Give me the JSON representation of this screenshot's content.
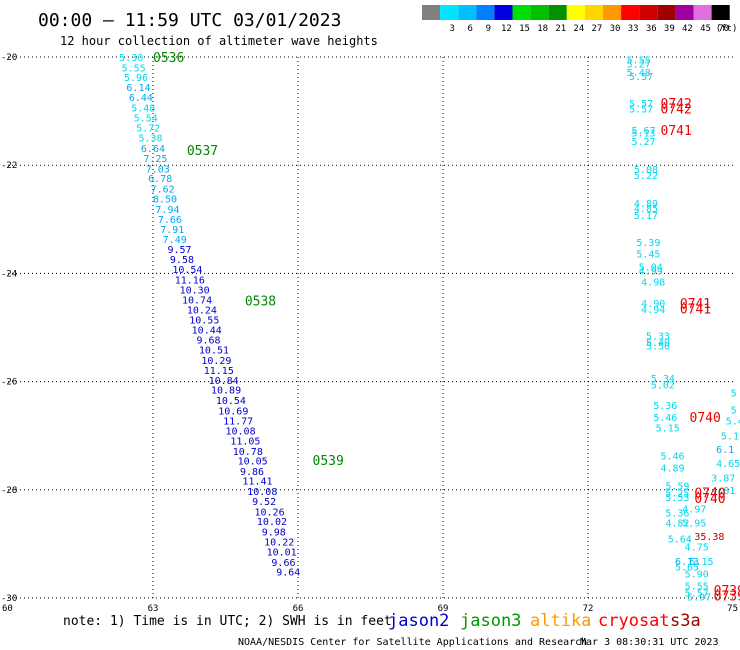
{
  "header": {
    "title": "00:00 — 11:59 UTC 03/01/2023",
    "subtitle": "12 hour collection of altimeter wave heights"
  },
  "legend": {
    "unit": "(ft)",
    "swatches": [
      {
        "label": "",
        "color": "#808080"
      },
      {
        "label": "3",
        "color": "#00e5ff"
      },
      {
        "label": "6",
        "color": "#00bfff"
      },
      {
        "label": "9",
        "color": "#0080ff"
      },
      {
        "label": "12",
        "color": "#0000e0"
      },
      {
        "label": "15",
        "color": "#00e000"
      },
      {
        "label": "18",
        "color": "#00c000"
      },
      {
        "label": "21",
        "color": "#009000"
      },
      {
        "label": "24",
        "color": "#ffff00"
      },
      {
        "label": "27",
        "color": "#ffd700"
      },
      {
        "label": "30",
        "color": "#ff9900"
      },
      {
        "label": "33",
        "color": "#ff0000"
      },
      {
        "label": "36",
        "color": "#d00000"
      },
      {
        "label": "39",
        "color": "#a00000"
      },
      {
        "label": "42",
        "color": "#a000a0"
      },
      {
        "label": "45",
        "color": "#e070e0"
      },
      {
        "label": "70",
        "color": "#000000"
      }
    ]
  },
  "footer": {
    "note": "note: 1) Time is in UTC; 2) SWH is in feet",
    "satellites": [
      {
        "name": "jason2",
        "color": "#0000cc"
      },
      {
        "name": "jason3",
        "color": "#009900"
      },
      {
        "name": "altika",
        "color": "#ff9900"
      },
      {
        "name": "cryosat",
        "color": "#ff0000"
      },
      {
        "name": "s3a",
        "color": "#990000"
      }
    ],
    "credit": "NOAA/NESDIS Center for Satellite Applications and Research",
    "timestamp": "Mar  3 08:30:31 UTC 2023"
  },
  "chart_data": {
    "type": "scatter",
    "xlim": [
      60,
      75
    ],
    "ylim": [
      -30,
      -20
    ],
    "x_ticks": [
      {
        "v": 60,
        "label": "60"
      },
      {
        "v": 63,
        "label": "63"
      },
      {
        "v": 66,
        "label": "66"
      },
      {
        "v": 69,
        "label": "69"
      },
      {
        "v": 72,
        "label": "72"
      },
      {
        "v": 75,
        "label": "75"
      }
    ],
    "y_ticks": [
      {
        "v": -20,
        "label": "-20"
      },
      {
        "v": -22,
        "label": "-22"
      },
      {
        "v": -24,
        "label": "-24"
      },
      {
        "v": -26,
        "label": "-26"
      },
      {
        "v": -28,
        "label": "-28"
      },
      {
        "v": -30,
        "label": "-30"
      }
    ],
    "grid": true,
    "times": [
      {
        "label": "0536",
        "x": 63.0,
        "y": -20.0,
        "color": "#008800"
      },
      {
        "label": "0537",
        "x": 63.7,
        "y": -21.72,
        "color": "#008800"
      },
      {
        "label": "0538",
        "x": 64.9,
        "y": -24.5,
        "color": "#008800"
      },
      {
        "label": "0539",
        "x": 66.3,
        "y": -27.45,
        "color": "#008800"
      },
      {
        "label": "0742",
        "x": 73.5,
        "y": -20.85,
        "color": "#ee0000"
      },
      {
        "label": "0742",
        "x": 73.5,
        "y": -20.95,
        "color": "#ee0000"
      },
      {
        "label": "0741",
        "x": 73.5,
        "y": -21.35,
        "color": "#ee0000"
      },
      {
        "label": "0741",
        "x": 73.9,
        "y": -24.55,
        "color": "#ee0000"
      },
      {
        "label": "0741",
        "x": 73.9,
        "y": -24.65,
        "color": "#ee0000"
      },
      {
        "label": "0740",
        "x": 74.1,
        "y": -26.65,
        "color": "#ee0000"
      },
      {
        "label": "0740",
        "x": 74.2,
        "y": -28.05,
        "color": "#ee0000"
      },
      {
        "label": "0740",
        "x": 74.2,
        "y": -28.15,
        "color": "#ee0000"
      },
      {
        "label": "0739",
        "x": 74.6,
        "y": -29.85,
        "color": "#ee0000"
      },
      {
        "label": "0739",
        "x": 74.6,
        "y": -29.95,
        "color": "#ee0000"
      }
    ],
    "points": [
      {
        "v": "5.30",
        "x": 62.3,
        "y": -20.0
      },
      {
        "v": "5.55",
        "x": 62.35,
        "y": -20.19
      },
      {
        "v": "5.96",
        "x": 62.4,
        "y": -20.37
      },
      {
        "v": "6.14",
        "x": 62.45,
        "y": -20.55
      },
      {
        "v": "6.44",
        "x": 62.5,
        "y": -20.74
      },
      {
        "v": "5.48",
        "x": 62.55,
        "y": -20.93
      },
      {
        "v": "5.54",
        "x": 62.6,
        "y": -21.12
      },
      {
        "v": "5.72",
        "x": 62.65,
        "y": -21.3
      },
      {
        "v": "5.38",
        "x": 62.7,
        "y": -21.49
      },
      {
        "v": "6.64",
        "x": 62.75,
        "y": -21.68
      },
      {
        "v": "7.25",
        "x": 62.8,
        "y": -21.87
      },
      {
        "v": "7.03",
        "x": 62.85,
        "y": -22.06
      },
      {
        "v": "6.78",
        "x": 62.9,
        "y": -22.24
      },
      {
        "v": "7.62",
        "x": 62.95,
        "y": -22.43
      },
      {
        "v": "8.50",
        "x": 63.0,
        "y": -22.62
      },
      {
        "v": "7.94",
        "x": 63.05,
        "y": -22.81
      },
      {
        "v": "7.66",
        "x": 63.1,
        "y": -22.99
      },
      {
        "v": "7.91",
        "x": 63.15,
        "y": -23.18
      },
      {
        "v": "7.49",
        "x": 63.2,
        "y": -23.36
      },
      {
        "v": "9.57",
        "x": 63.3,
        "y": -23.55
      },
      {
        "v": "9.58",
        "x": 63.35,
        "y": -23.73
      },
      {
        "v": "10.54",
        "x": 63.4,
        "y": -23.92
      },
      {
        "v": "11.16",
        "x": 63.45,
        "y": -24.11
      },
      {
        "v": "10.30",
        "x": 63.55,
        "y": -24.3
      },
      {
        "v": "10.74",
        "x": 63.6,
        "y": -24.48
      },
      {
        "v": "10.24",
        "x": 63.7,
        "y": -24.67
      },
      {
        "v": "10.55",
        "x": 63.75,
        "y": -24.85
      },
      {
        "v": "10.44",
        "x": 63.8,
        "y": -25.04
      },
      {
        "v": "9.68",
        "x": 63.9,
        "y": -25.22
      },
      {
        "v": "10.51",
        "x": 63.95,
        "y": -25.41
      },
      {
        "v": "10.29",
        "x": 64.0,
        "y": -25.6
      },
      {
        "v": "11.15",
        "x": 64.05,
        "y": -25.79
      },
      {
        "v": "10.84",
        "x": 64.15,
        "y": -25.97
      },
      {
        "v": "10.89",
        "x": 64.2,
        "y": -26.15
      },
      {
        "v": "10.54",
        "x": 64.3,
        "y": -26.34
      },
      {
        "v": "10.69",
        "x": 64.35,
        "y": -26.53
      },
      {
        "v": "11.77",
        "x": 64.45,
        "y": -26.72
      },
      {
        "v": "10.08",
        "x": 64.5,
        "y": -26.9
      },
      {
        "v": "11.05",
        "x": 64.6,
        "y": -27.09
      },
      {
        "v": "10.78",
        "x": 64.65,
        "y": -27.28
      },
      {
        "v": "10.05",
        "x": 64.75,
        "y": -27.46
      },
      {
        "v": "9.86",
        "x": 64.8,
        "y": -27.65
      },
      {
        "v": "11.41",
        "x": 64.85,
        "y": -27.83
      },
      {
        "v": "10.08",
        "x": 64.95,
        "y": -28.02
      },
      {
        "v": "9.52",
        "x": 65.05,
        "y": -28.21
      },
      {
        "v": "10.26",
        "x": 65.1,
        "y": -28.4
      },
      {
        "v": "10.02",
        "x": 65.15,
        "y": -28.58
      },
      {
        "v": "9.98",
        "x": 65.25,
        "y": -28.77
      },
      {
        "v": "10.22",
        "x": 65.3,
        "y": -28.96
      },
      {
        "v": "10.01",
        "x": 65.35,
        "y": -29.14
      },
      {
        "v": "9.66",
        "x": 65.45,
        "y": -29.33
      },
      {
        "v": "9.64",
        "x": 65.55,
        "y": -29.51
      },
      {
        "v": "5.55",
        "x": 72.8,
        "y": -20.05
      },
      {
        "v": "5.27",
        "x": 72.8,
        "y": -20.12
      },
      {
        "v": "5.48",
        "x": 72.8,
        "y": -20.28
      },
      {
        "v": "5.57",
        "x": 72.85,
        "y": -20.35
      },
      {
        "v": "5.57",
        "x": 72.85,
        "y": -20.85
      },
      {
        "v": "5.57",
        "x": 72.85,
        "y": -20.95
      },
      {
        "v": "5.67",
        "x": 72.9,
        "y": -21.35
      },
      {
        "v": "5.13",
        "x": 72.9,
        "y": -21.4
      },
      {
        "v": "5.27",
        "x": 72.9,
        "y": -21.55
      },
      {
        "v": "5.08",
        "x": 72.95,
        "y": -22.07
      },
      {
        "v": "5.22",
        "x": 72.95,
        "y": -22.18
      },
      {
        "v": "4.89",
        "x": 72.95,
        "y": -22.7
      },
      {
        "v": "4.85",
        "x": 72.95,
        "y": -22.79
      },
      {
        "v": "5.17",
        "x": 72.95,
        "y": -22.92
      },
      {
        "v": "5.39",
        "x": 73.0,
        "y": -23.42
      },
      {
        "v": "5.45",
        "x": 73.0,
        "y": -23.63
      },
      {
        "v": "5.04",
        "x": 73.05,
        "y": -23.87
      },
      {
        "v": "4.99",
        "x": 73.05,
        "y": -23.95
      },
      {
        "v": "4.98",
        "x": 73.1,
        "y": -24.15
      },
      {
        "v": "4.90",
        "x": 73.1,
        "y": -24.55
      },
      {
        "v": "4.94",
        "x": 73.1,
        "y": -24.66
      },
      {
        "v": "5.33",
        "x": 73.2,
        "y": -25.15
      },
      {
        "v": "5.40",
        "x": 73.2,
        "y": -25.27
      },
      {
        "v": "5.50",
        "x": 73.2,
        "y": -25.33
      },
      {
        "v": "5.34",
        "x": 73.3,
        "y": -25.93
      },
      {
        "v": "5.02",
        "x": 73.3,
        "y": -26.05
      },
      {
        "v": "5.36",
        "x": 73.35,
        "y": -26.43
      },
      {
        "v": "5.46",
        "x": 73.35,
        "y": -26.65
      },
      {
        "v": "5.15",
        "x": 73.4,
        "y": -26.85
      },
      {
        "v": "5.46",
        "x": 73.5,
        "y": -27.37
      },
      {
        "v": "4.89",
        "x": 73.5,
        "y": -27.59
      },
      {
        "v": "5.59",
        "x": 73.6,
        "y": -27.92
      },
      {
        "v": "5.25",
        "x": 73.6,
        "y": -28.05
      },
      {
        "v": "5.53",
        "x": 73.6,
        "y": -28.13
      },
      {
        "v": "4.97",
        "x": 73.95,
        "y": -28.35
      },
      {
        "v": "5.36",
        "x": 73.6,
        "y": -28.42
      },
      {
        "v": "4.82",
        "x": 73.6,
        "y": -28.6
      },
      {
        "v": "5.95",
        "x": 73.95,
        "y": -28.6
      },
      {
        "v": "5.64",
        "x": 73.65,
        "y": -28.9
      },
      {
        "v": "4.75",
        "x": 74.0,
        "y": -29.05
      },
      {
        "v": "5.15",
        "x": 74.1,
        "y": -29.32
      },
      {
        "v": "6.13",
        "x": 73.8,
        "y": -29.32
      },
      {
        "v": "5.65",
        "x": 73.8,
        "y": -29.42
      },
      {
        "v": "5.90",
        "x": 74.0,
        "y": -29.55
      },
      {
        "v": "5.55",
        "x": 74.0,
        "y": -29.77
      },
      {
        "v": "5.57",
        "x": 74.0,
        "y": -29.9
      },
      {
        "v": "5.97",
        "x": 74.05,
        "y": -29.97
      },
      {
        "v": "5",
        "x": 74.95,
        "y": -26.2
      },
      {
        "v": "5",
        "x": 74.95,
        "y": -26.52
      },
      {
        "v": "5.4",
        "x": 74.85,
        "y": -26.72
      },
      {
        "v": "5.1",
        "x": 74.75,
        "y": -27.0
      },
      {
        "v": "6.1",
        "x": 74.65,
        "y": -27.25
      },
      {
        "v": "4.65",
        "x": 74.65,
        "y": -27.5
      },
      {
        "v": "3.87",
        "x": 74.55,
        "y": -27.77
      },
      {
        "v": "4.81",
        "x": 74.55,
        "y": -28.0
      },
      {
        "v": "35.38",
        "x": 74.2,
        "y": -28.85,
        "color": "#c00000"
      }
    ]
  }
}
